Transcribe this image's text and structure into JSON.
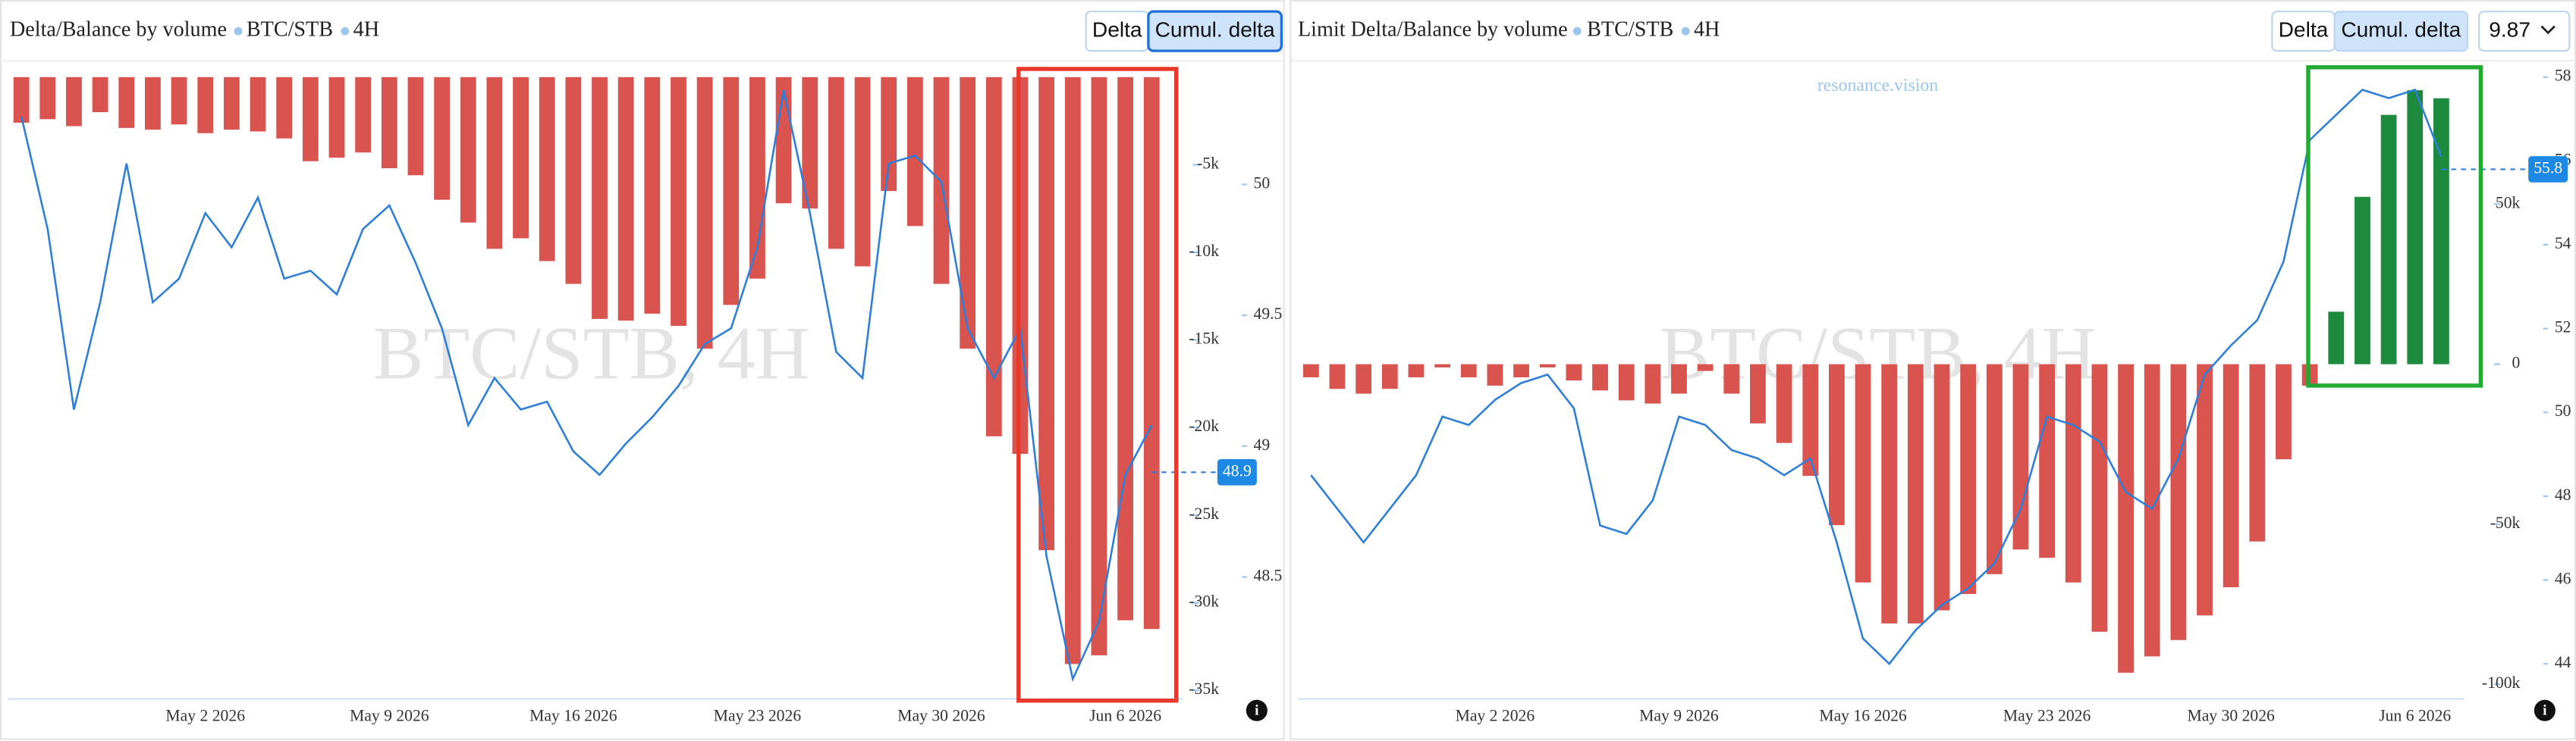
{
  "chart_data": [
    {
      "type": "bar",
      "title": "Delta/Balance by volume",
      "pair": "BTC/STB",
      "interval": "4H",
      "buttons": [
        "Delta",
        "Cumul. delta"
      ],
      "watermark": "BTC/STB, 4H",
      "last_price": 48.9,
      "categories": [
        null,
        null,
        null,
        null,
        null,
        null,
        null,
        "May 2 2026",
        null,
        null,
        null,
        null,
        null,
        null,
        "May 9 2026",
        null,
        null,
        null,
        null,
        null,
        null,
        "May 16 2026",
        null,
        null,
        null,
        null,
        null,
        null,
        "May 23 2026",
        null,
        null,
        null,
        null,
        null,
        null,
        "May 30 2026",
        null,
        null,
        null,
        null,
        null,
        null,
        "Jun 6 2026",
        null
      ],
      "series": [
        {
          "color": "#d9534f",
          "values": [
            -2600,
            -2400,
            -2800,
            -2000,
            -2900,
            -3000,
            -2700,
            -3200,
            -3000,
            -3100,
            -3500,
            -4800,
            -4600,
            -4300,
            -5200,
            -5600,
            -7000,
            -8300,
            -9800,
            -9200,
            -10500,
            -11800,
            -13800,
            -13900,
            -13500,
            -14200,
            -15500,
            -13000,
            -11500,
            -7200,
            -7500,
            -9800,
            -10800,
            -6500,
            -8500,
            -11800,
            -15500,
            -20500,
            -21500,
            -27000,
            -33500,
            -33000,
            -31000,
            -31500
          ]
        },
        {
          "color": "#2f7fd8",
          "axis": "y2",
          "values": [
            50.26,
            49.83,
            49.14,
            49.55,
            50.08,
            49.55,
            49.64,
            49.89,
            49.76,
            49.95,
            49.64,
            49.67,
            49.58,
            49.83,
            49.92,
            49.7,
            49.45,
            49.08,
            49.26,
            49.14,
            49.17,
            48.98,
            48.89,
            49.01,
            49.11,
            49.23,
            49.39,
            49.45,
            49.76,
            50.36,
            49.89,
            49.36,
            49.26,
            50.08,
            50.11,
            50.01,
            49.45,
            49.26,
            49.45,
            48.58,
            48.11,
            48.33,
            48.89,
            49.08
          ]
        }
      ],
      "ylim": [
        -35400,
        0
      ],
      "yticks": [
        {
          "value": -5000,
          "label": "-5k"
        },
        {
          "value": -10000,
          "label": "-10k"
        },
        {
          "value": -15000,
          "label": "-15k"
        },
        {
          "value": -20000,
          "label": "-20k"
        },
        {
          "value": -25000,
          "label": "-25k"
        },
        {
          "value": -30000,
          "label": "-30k"
        },
        {
          "value": -35000,
          "label": "-35k"
        }
      ],
      "y2lim": [
        48.04,
        50.41
      ],
      "y2ticks": [
        50,
        49.5,
        49,
        48.5
      ]
    },
    {
      "type": "bar",
      "title": "Limit Delta/Balance by volume",
      "pair": "BTC/STB",
      "interval": "4H",
      "buttons": [
        "Delta",
        "Cumul. delta"
      ],
      "selector": "9.87",
      "watermark": "BTC/STB, 4H",
      "brand": "resonance.vision",
      "last_price": 55.8,
      "positive_color": "#1e8a3e",
      "categories": [
        null,
        null,
        null,
        null,
        null,
        null,
        null,
        "May 2 2026",
        null,
        null,
        null,
        null,
        null,
        null,
        "May 9 2026",
        null,
        null,
        null,
        null,
        null,
        null,
        "May 16 2026",
        null,
        null,
        null,
        null,
        null,
        null,
        "May 23 2026",
        null,
        null,
        null,
        null,
        null,
        null,
        "May 30 2026",
        null,
        null,
        null,
        null,
        null,
        null,
        "Jun 6 2026",
        null
      ],
      "series": [
        {
          "color": "#d9534f",
          "values": [
            -4100,
            -7700,
            -9200,
            -7700,
            -4100,
            -1000,
            -4100,
            -6700,
            -4100,
            -1000,
            -5100,
            -8200,
            -11300,
            -12300,
            -9200,
            -2100,
            -9200,
            -18500,
            -24600,
            -34900,
            -50300,
            -68200,
            -81000,
            -81000,
            -76900,
            -71800,
            -65600,
            -57900,
            -60500,
            -68200,
            -83600,
            -96400,
            -91300,
            -86200,
            -78500,
            -69700,
            -55400,
            -29700,
            -6700,
            16400,
            52300,
            77900,
            85600,
            83100
          ]
        },
        {
          "color": "#2f7fd8",
          "axis": "y2",
          "values": [
            48.5,
            47.7,
            46.9,
            47.7,
            48.5,
            49.9,
            49.7,
            50.3,
            50.7,
            50.9,
            50.1,
            47.3,
            47.1,
            47.9,
            49.9,
            49.7,
            49.1,
            48.9,
            48.5,
            48.9,
            46.9,
            44.6,
            44.0,
            44.8,
            45.4,
            45.8,
            46.4,
            47.7,
            49.9,
            49.7,
            49.3,
            48.1,
            47.7,
            48.9,
            50.9,
            51.6,
            52.2,
            53.6,
            56.5,
            57.1,
            57.7,
            57.5,
            57.7,
            56.1
          ]
        }
      ],
      "ylim": [
        -104100,
        89700
      ],
      "yticks": [
        {
          "value": 50000,
          "label": "50k"
        },
        0,
        {
          "value": -50000,
          "label": "-50k"
        },
        {
          "value": -100000,
          "label": "-100k"
        }
      ],
      "y2lim": [
        43.2,
        58
      ],
      "y2ticks": [
        58,
        56,
        54,
        52,
        50,
        48,
        46,
        44
      ]
    }
  ]
}
